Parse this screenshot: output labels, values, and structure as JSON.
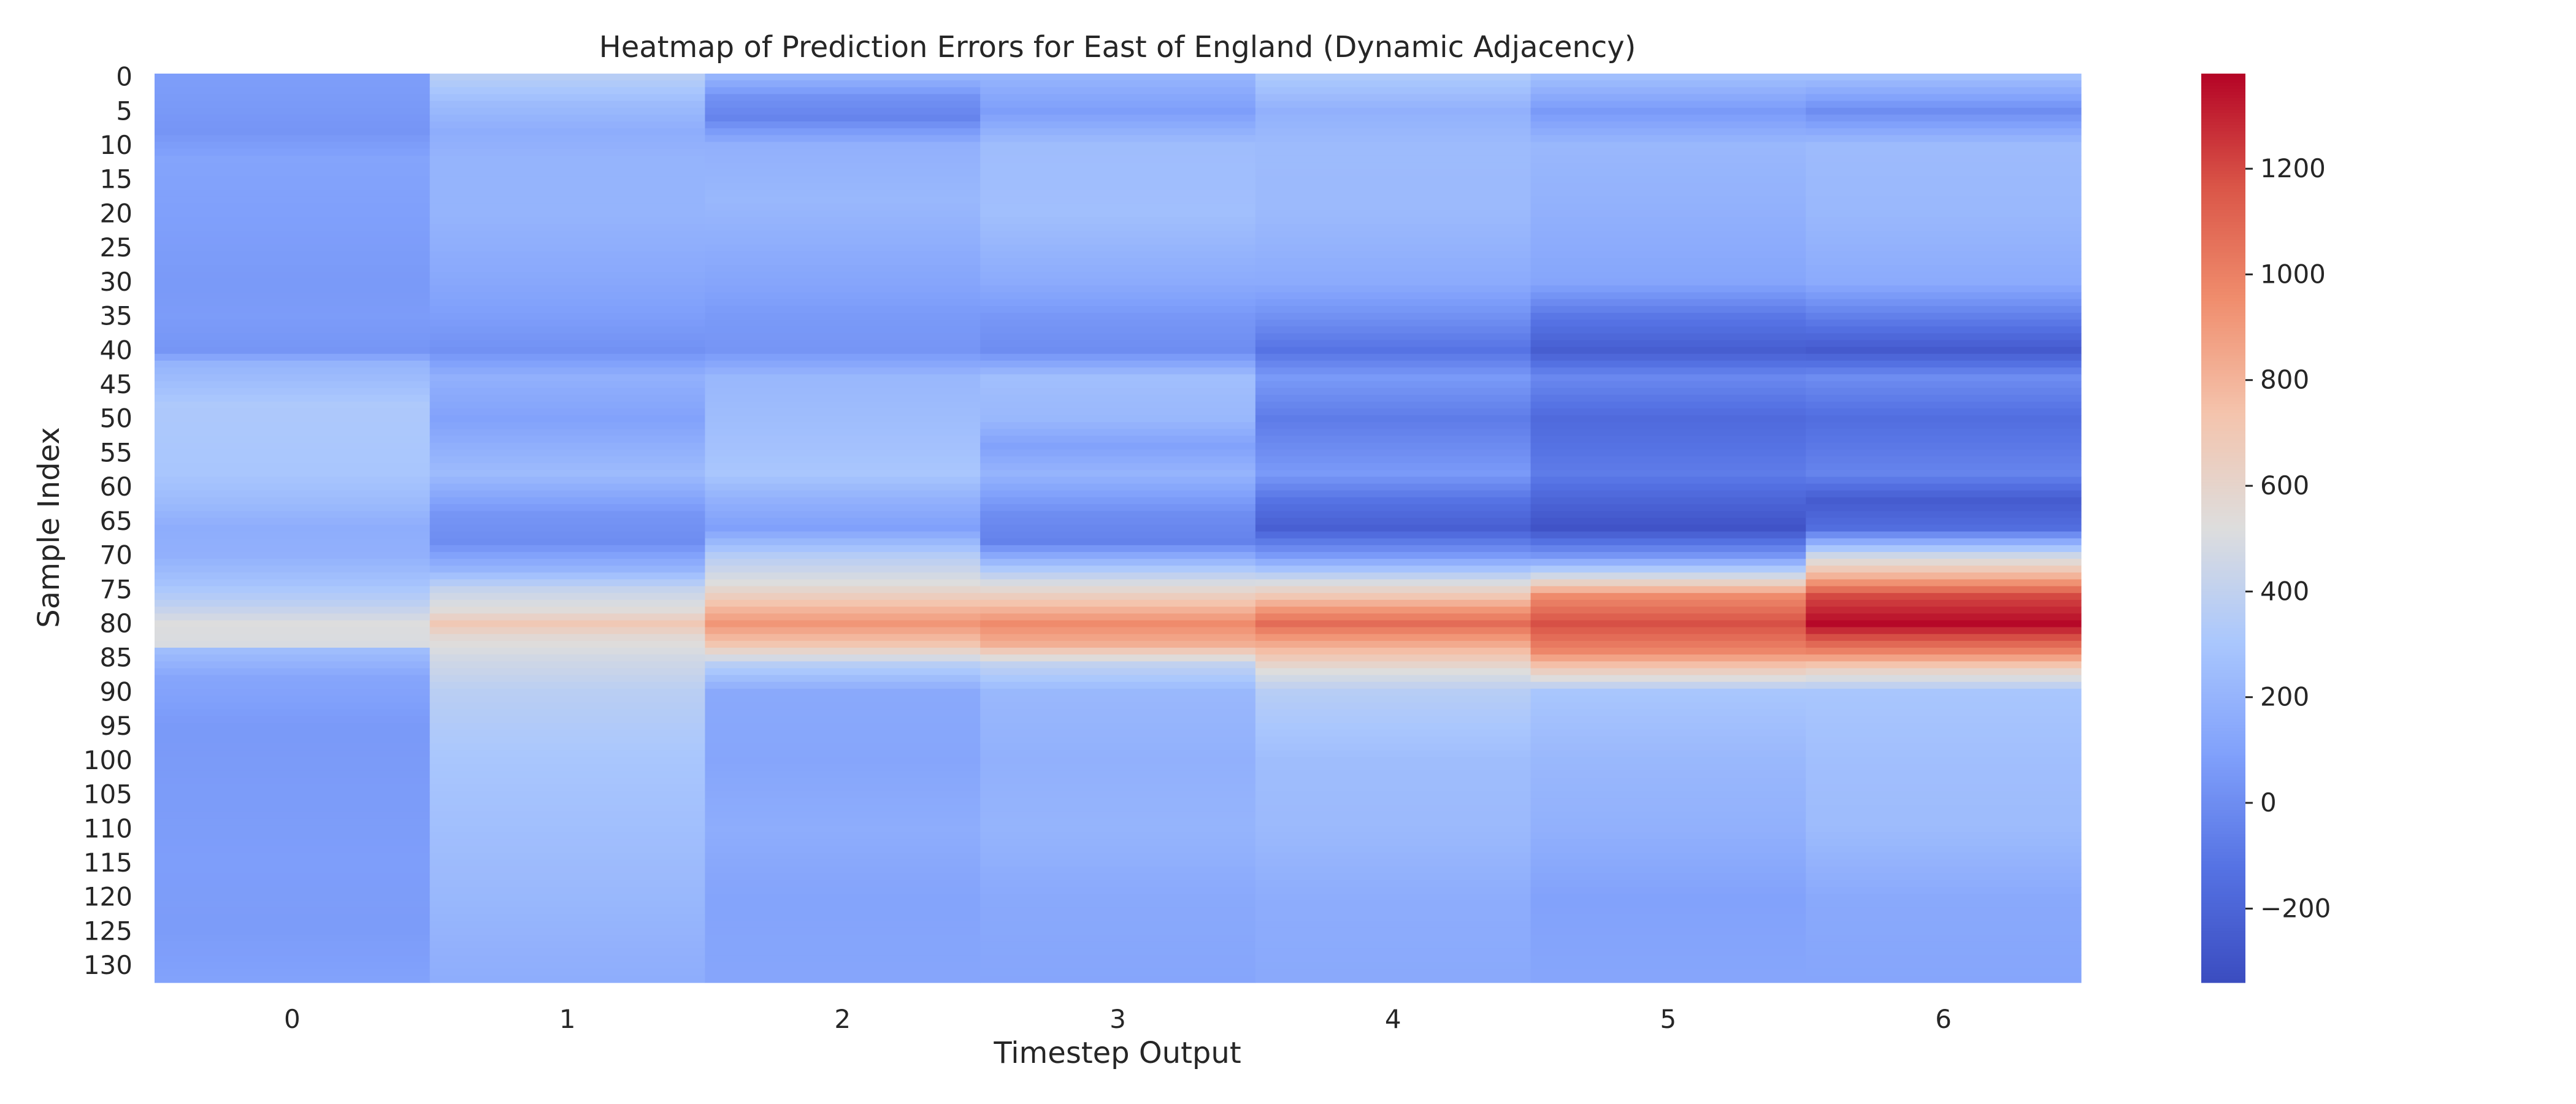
{
  "chart_data": {
    "type": "heatmap",
    "title": "Heatmap of Prediction Errors for East of England (Dynamic Adjacency)",
    "xlabel": "Timestep Output",
    "ylabel": "Sample Index",
    "x_categories": [
      "0",
      "1",
      "2",
      "3",
      "4",
      "5",
      "6"
    ],
    "y_tick_labels": [
      "0",
      "5",
      "10",
      "15",
      "20",
      "25",
      "30",
      "35",
      "40",
      "45",
      "50",
      "55",
      "60",
      "65",
      "70",
      "75",
      "80",
      "85",
      "90",
      "95",
      "100",
      "105",
      "110",
      "115",
      "120",
      "125",
      "130"
    ],
    "row_count": 133,
    "colormap": "coolwarm",
    "colorbar": {
      "range": [
        -340,
        1380
      ],
      "ticks": [
        -200,
        0,
        200,
        400,
        600,
        800,
        1000,
        1200
      ],
      "tick_labels": [
        "−200",
        "0",
        "200",
        "400",
        "600",
        "800",
        "1000",
        "1200"
      ]
    },
    "series": [
      {
        "values": [
          [
            0,
            80
          ],
          [
            4,
            60
          ],
          [
            8,
            40
          ],
          [
            12,
            110
          ],
          [
            20,
            90
          ],
          [
            30,
            60
          ],
          [
            35,
            70
          ],
          [
            40,
            40
          ],
          [
            42,
            200
          ],
          [
            48,
            320
          ],
          [
            58,
            300
          ],
          [
            62,
            240
          ],
          [
            66,
            160
          ],
          [
            70,
            180
          ],
          [
            74,
            280
          ],
          [
            77,
            380
          ],
          [
            80,
            520
          ],
          [
            83,
            500
          ],
          [
            84,
            250
          ],
          [
            88,
            120
          ],
          [
            95,
            60
          ],
          [
            105,
            70
          ],
          [
            115,
            80
          ],
          [
            125,
            70
          ],
          [
            132,
            100
          ]
        ]
      },
      {
        "values": [
          [
            0,
            360
          ],
          [
            4,
            240
          ],
          [
            8,
            160
          ],
          [
            12,
            200
          ],
          [
            20,
            200
          ],
          [
            30,
            130
          ],
          [
            35,
            80
          ],
          [
            40,
            20
          ],
          [
            44,
            180
          ],
          [
            50,
            100
          ],
          [
            58,
            240
          ],
          [
            64,
            40
          ],
          [
            68,
            0
          ],
          [
            72,
            200
          ],
          [
            75,
            420
          ],
          [
            78,
            540
          ],
          [
            80,
            700
          ],
          [
            82,
            560
          ],
          [
            85,
            470
          ],
          [
            90,
            370
          ],
          [
            100,
            300
          ],
          [
            110,
            260
          ],
          [
            120,
            220
          ],
          [
            132,
            160
          ]
        ]
      },
      {
        "values": [
          [
            0,
            200
          ],
          [
            3,
            20
          ],
          [
            6,
            -40
          ],
          [
            10,
            180
          ],
          [
            18,
            220
          ],
          [
            30,
            120
          ],
          [
            35,
            60
          ],
          [
            40,
            40
          ],
          [
            44,
            220
          ],
          [
            52,
            260
          ],
          [
            58,
            300
          ],
          [
            62,
            180
          ],
          [
            66,
            90
          ],
          [
            70,
            350
          ],
          [
            74,
            520
          ],
          [
            78,
            800
          ],
          [
            80,
            920
          ],
          [
            83,
            720
          ],
          [
            86,
            360
          ],
          [
            90,
            140
          ],
          [
            100,
            120
          ],
          [
            110,
            160
          ],
          [
            120,
            110
          ],
          [
            132,
            120
          ]
        ]
      },
      {
        "values": [
          [
            0,
            200
          ],
          [
            5,
            80
          ],
          [
            10,
            250
          ],
          [
            20,
            260
          ],
          [
            30,
            150
          ],
          [
            35,
            50
          ],
          [
            40,
            0
          ],
          [
            44,
            260
          ],
          [
            50,
            220
          ],
          [
            54,
            100
          ],
          [
            58,
            200
          ],
          [
            64,
            0
          ],
          [
            68,
            -50
          ],
          [
            72,
            320
          ],
          [
            76,
            660
          ],
          [
            80,
            960
          ],
          [
            83,
            820
          ],
          [
            86,
            400
          ],
          [
            90,
            220
          ],
          [
            100,
            180
          ],
          [
            110,
            200
          ],
          [
            120,
            140
          ],
          [
            132,
            120
          ]
        ]
      },
      {
        "values": [
          [
            0,
            320
          ],
          [
            5,
            180
          ],
          [
            10,
            240
          ],
          [
            20,
            230
          ],
          [
            30,
            150
          ],
          [
            35,
            20
          ],
          [
            40,
            -120
          ],
          [
            44,
            60
          ],
          [
            50,
            -80
          ],
          [
            58,
            60
          ],
          [
            62,
            -120
          ],
          [
            66,
            -230
          ],
          [
            70,
            60
          ],
          [
            74,
            500
          ],
          [
            78,
            920
          ],
          [
            80,
            1080
          ],
          [
            84,
            760
          ],
          [
            87,
            520
          ],
          [
            90,
            360
          ],
          [
            100,
            250
          ],
          [
            110,
            230
          ],
          [
            120,
            160
          ],
          [
            132,
            140
          ]
        ]
      },
      {
        "values": [
          [
            0,
            260
          ],
          [
            5,
            60
          ],
          [
            10,
            220
          ],
          [
            20,
            180
          ],
          [
            30,
            120
          ],
          [
            35,
            -100
          ],
          [
            40,
            -240
          ],
          [
            44,
            -20
          ],
          [
            50,
            -170
          ],
          [
            58,
            -80
          ],
          [
            62,
            -200
          ],
          [
            66,
            -300
          ],
          [
            70,
            40
          ],
          [
            73,
            460
          ],
          [
            76,
            960
          ],
          [
            80,
            1180
          ],
          [
            84,
            980
          ],
          [
            87,
            640
          ],
          [
            90,
            300
          ],
          [
            100,
            220
          ],
          [
            110,
            180
          ],
          [
            120,
            100
          ],
          [
            132,
            120
          ]
        ]
      },
      {
        "values": [
          [
            0,
            260
          ],
          [
            5,
            0
          ],
          [
            10,
            240
          ],
          [
            20,
            220
          ],
          [
            30,
            150
          ],
          [
            35,
            -60
          ],
          [
            40,
            -260
          ],
          [
            44,
            0
          ],
          [
            50,
            -150
          ],
          [
            58,
            -40
          ],
          [
            62,
            -250
          ],
          [
            66,
            -150
          ],
          [
            70,
            450
          ],
          [
            73,
            800
          ],
          [
            76,
            1200
          ],
          [
            80,
            1370
          ],
          [
            84,
            1000
          ],
          [
            87,
            600
          ],
          [
            90,
            300
          ],
          [
            100,
            260
          ],
          [
            110,
            240
          ],
          [
            120,
            140
          ],
          [
            132,
            120
          ]
        ]
      }
    ]
  }
}
